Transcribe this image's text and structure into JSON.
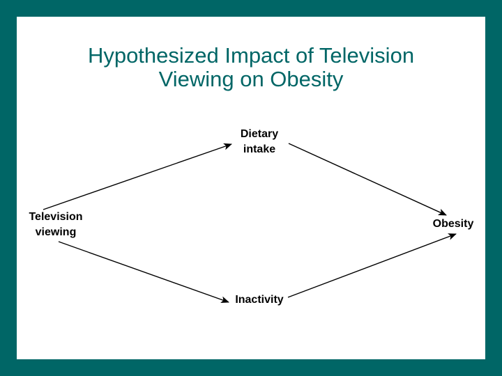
{
  "colors": {
    "frame": "#006666",
    "slide_background": "#ffffff",
    "title_text": "#006666",
    "diagram_ink": "#000000"
  },
  "title": {
    "line1": "Hypothesized Impact of Television",
    "line2": "Viewing on Obesity"
  },
  "nodes": {
    "television": {
      "line1": "Television",
      "line2": "viewing"
    },
    "dietary": {
      "line1": "Dietary",
      "line2": "intake"
    },
    "inactivity": {
      "line1": "Inactivity"
    },
    "obesity": {
      "line1": "Obesity"
    }
  }
}
